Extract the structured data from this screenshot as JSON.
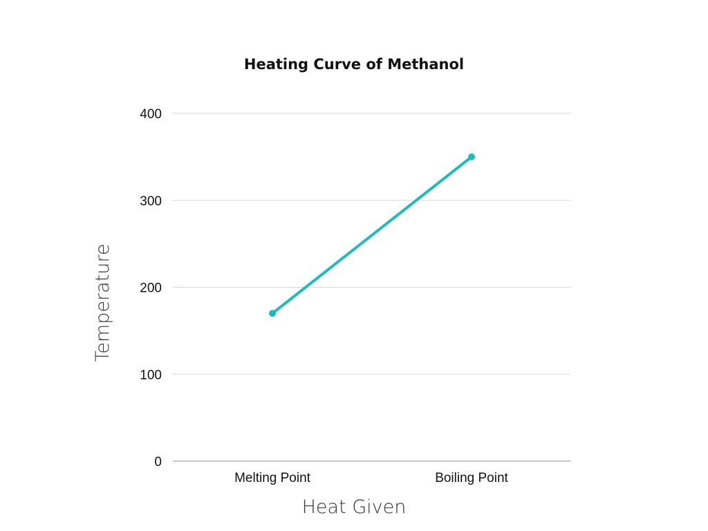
{
  "chart_data": {
    "type": "line",
    "title": "Heating Curve of Methanol",
    "xlabel": "Heat Given",
    "ylabel": "Temperature",
    "categories": [
      "Melting Point",
      "Boiling Point"
    ],
    "series": [
      {
        "values": [
          170,
          350
        ],
        "color": "#1ebbbd"
      }
    ],
    "ylim": [
      0,
      400
    ],
    "yticks": [
      "0",
      "100",
      "200",
      "300",
      "400"
    ],
    "grid": true,
    "legend": "none"
  }
}
